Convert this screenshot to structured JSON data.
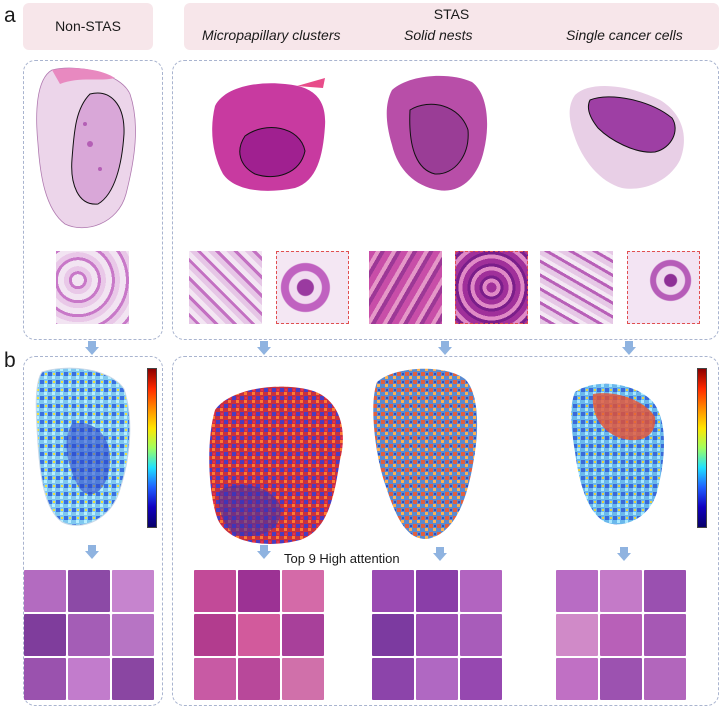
{
  "panels": {
    "a_label": "a",
    "b_label": "b"
  },
  "headers": {
    "non_stas": "Non-STAS",
    "stas": "STAS",
    "subtypes": [
      "Micropapillary clusters",
      "Solid nests",
      "Single cancer cells"
    ]
  },
  "attention": {
    "caption": "Top 9 High attention"
  },
  "colors": {
    "header_bg": "#f7e6ea",
    "dashed_border": "#a9b4cf",
    "arrow": "#8fb3e0",
    "he_pink": "#d23a9a",
    "he_purple": "#7a1e8a",
    "roi_outline": "#111111"
  }
}
